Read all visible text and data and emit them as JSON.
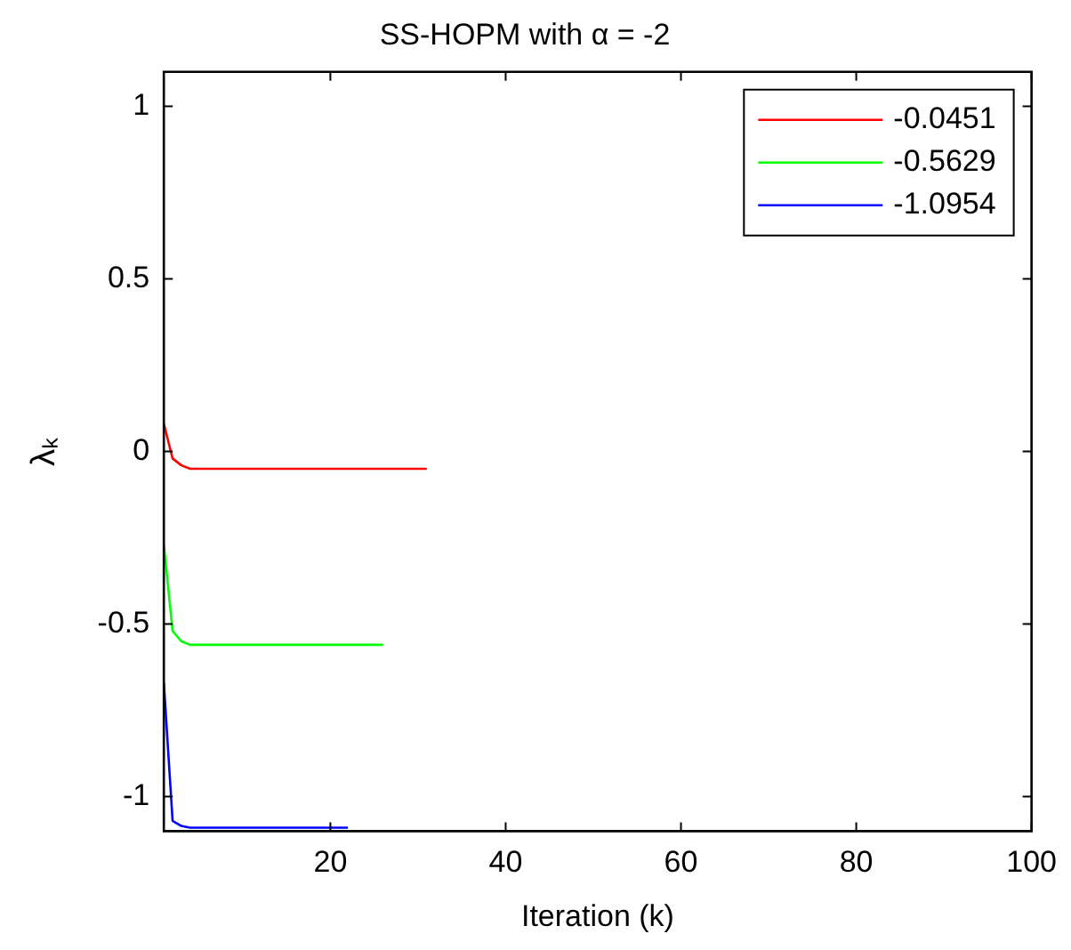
{
  "chart_data": {
    "type": "line",
    "title": "SS-HOPM with α = -2",
    "xlabel": "Iteration (k)",
    "ylabel": "λₖ",
    "xlim": [
      1,
      100
    ],
    "xticks": [
      20,
      40,
      60,
      80,
      100
    ],
    "ylim": [
      -1.1,
      1.1
    ],
    "yticks": [
      -1,
      -0.5,
      0,
      0.5,
      1
    ],
    "grid": false,
    "legend": "top right",
    "marker": "none",
    "line_style": "solid",
    "series": [
      {
        "name": "-0.0451",
        "color": "#ff0000",
        "x": [
          1,
          2,
          3,
          4,
          31
        ],
        "values": [
          0.08,
          -0.02,
          -0.04,
          -0.05,
          -0.05
        ]
      },
      {
        "name": "-0.5629",
        "color": "#00ff00",
        "x": [
          1,
          2,
          3,
          4,
          26
        ],
        "values": [
          -0.27,
          -0.52,
          -0.55,
          -0.56,
          -0.56
        ]
      },
      {
        "name": "-1.0954",
        "color": "#0000ff",
        "x": [
          1,
          2,
          3,
          4,
          22
        ],
        "values": [
          -0.67,
          -1.07,
          -1.085,
          -1.09,
          -1.09
        ]
      }
    ]
  }
}
